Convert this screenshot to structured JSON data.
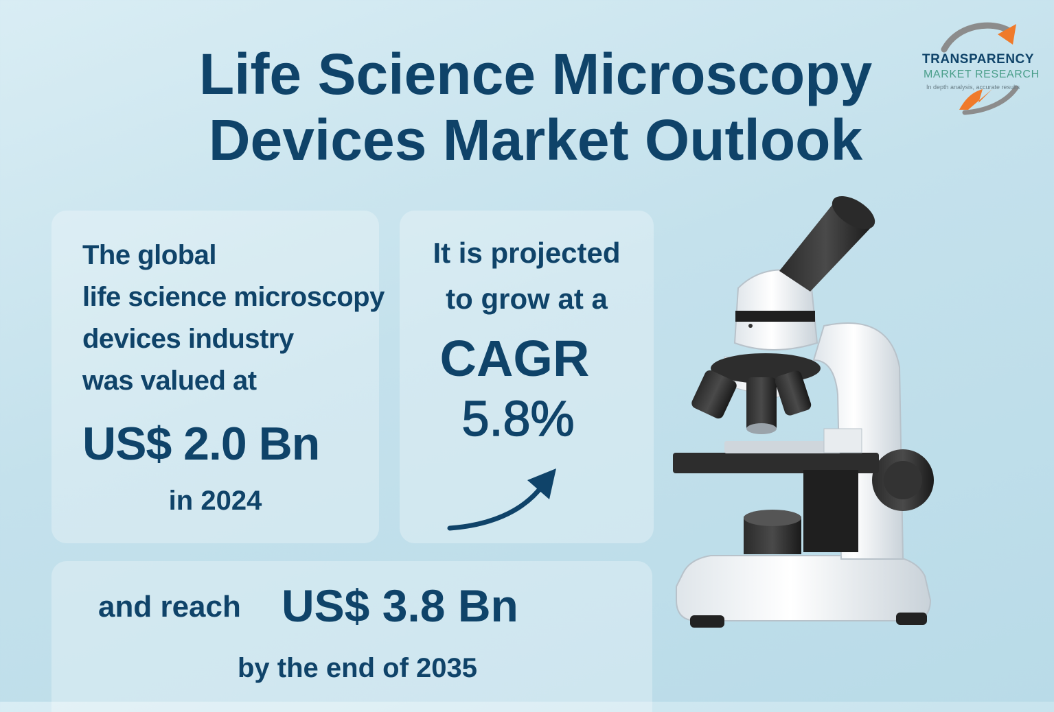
{
  "title": {
    "line1": "Life Science Microscopy",
    "line2": "Devices Market Outlook"
  },
  "logo": {
    "line1": "TRANSPARENCY",
    "line2": "MARKET RESEARCH",
    "tagline": "In depth analysis, accurate results"
  },
  "card_current": {
    "lines": [
      "The global",
      "life science microscopy",
      "devices industry",
      "was valued at"
    ],
    "value": "US$ 2.0 Bn",
    "year": "in 2024"
  },
  "card_growth": {
    "line1": "It is projected",
    "line2": "to grow at a",
    "label": "CAGR",
    "value": "5.8%"
  },
  "card_forecast": {
    "lead": "and reach",
    "value": "US$ 3.8 Bn",
    "tail": "by the end of 2035"
  },
  "colors": {
    "primary_text": "#0f4369",
    "accent_orange": "#f07a2a",
    "logo_green": "#4a9e8a"
  },
  "icons": {
    "logo": "swoosh-arrow-logo",
    "arrow": "curved-up-arrow-icon",
    "illustration": "microscope-illustration"
  }
}
